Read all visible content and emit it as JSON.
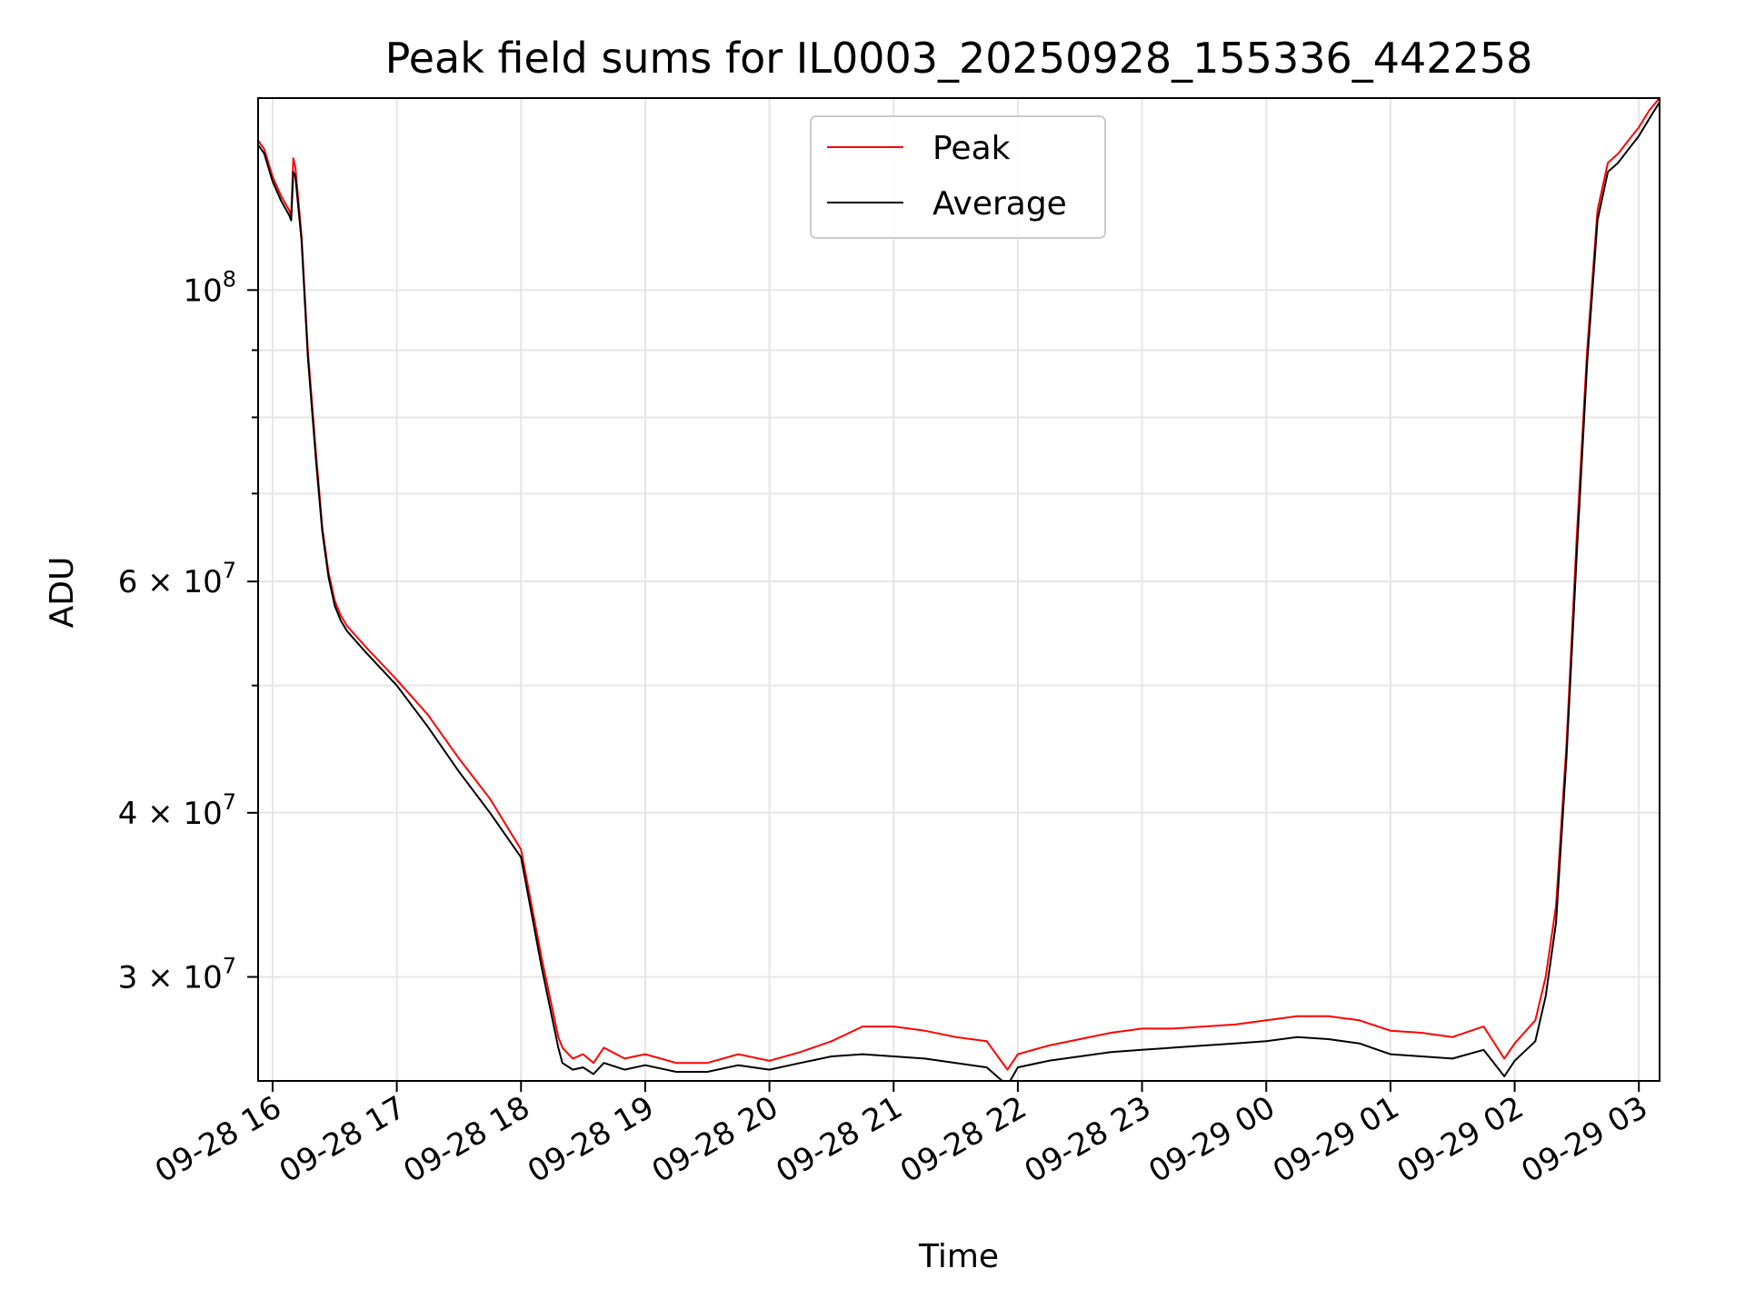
{
  "chart_data": {
    "type": "line",
    "title": "Peak field sums for IL0003_20250928_155336_442258",
    "xlabel": "Time",
    "ylabel": "ADU",
    "yscale": "log",
    "ylim": [
      25000000,
      140000000
    ],
    "xlim": [
      "2025-09-28T15:53",
      "2025-09-29T03:10"
    ],
    "grid": true,
    "legend_position": "top-center",
    "x_ticks": [
      {
        "t": "2025-09-28T16:00",
        "label": "09-28 16"
      },
      {
        "t": "2025-09-28T17:00",
        "label": "09-28 17"
      },
      {
        "t": "2025-09-28T18:00",
        "label": "09-28 18"
      },
      {
        "t": "2025-09-28T19:00",
        "label": "09-28 19"
      },
      {
        "t": "2025-09-28T20:00",
        "label": "09-28 20"
      },
      {
        "t": "2025-09-28T21:00",
        "label": "09-28 21"
      },
      {
        "t": "2025-09-28T22:00",
        "label": "09-28 22"
      },
      {
        "t": "2025-09-28T23:00",
        "label": "09-28 23"
      },
      {
        "t": "2025-09-29T00:00",
        "label": "09-29 00"
      },
      {
        "t": "2025-09-29T01:00",
        "label": "09-29 01"
      },
      {
        "t": "2025-09-29T02:00",
        "label": "09-29 02"
      },
      {
        "t": "2025-09-29T03:00",
        "label": "09-29 03"
      }
    ],
    "y_major_ticks": [
      {
        "value": 30000000,
        "mantissa": "3",
        "exponent": "7"
      },
      {
        "value": 40000000,
        "mantissa": "4",
        "exponent": "7"
      },
      {
        "value": 60000000,
        "mantissa": "6",
        "exponent": "7"
      },
      {
        "value": 100000000,
        "mantissa": "",
        "exponent": "8"
      }
    ],
    "y_minor_ticks": [
      50000000,
      70000000,
      80000000,
      90000000
    ],
    "series": [
      {
        "name": "Peak",
        "color": "#ff0000",
        "x": [
          "2025-09-28T15:53",
          "2025-09-28T15:56",
          "2025-09-28T16:00",
          "2025-09-28T16:04",
          "2025-09-28T16:08",
          "2025-09-28T16:09",
          "2025-09-28T16:10",
          "2025-09-28T16:11",
          "2025-09-28T16:14",
          "2025-09-28T16:17",
          "2025-09-28T16:21",
          "2025-09-28T16:24",
          "2025-09-28T16:27",
          "2025-09-28T16:30",
          "2025-09-28T16:33",
          "2025-09-28T16:36",
          "2025-09-28T16:45",
          "2025-09-28T17:00",
          "2025-09-28T17:15",
          "2025-09-28T17:30",
          "2025-09-28T17:45",
          "2025-09-28T18:00",
          "2025-09-28T18:10",
          "2025-09-28T18:18",
          "2025-09-28T18:20",
          "2025-09-28T18:25",
          "2025-09-28T18:30",
          "2025-09-28T18:35",
          "2025-09-28T18:40",
          "2025-09-28T18:50",
          "2025-09-28T19:00",
          "2025-09-28T19:15",
          "2025-09-28T19:30",
          "2025-09-28T19:45",
          "2025-09-28T20:00",
          "2025-09-28T20:15",
          "2025-09-28T20:30",
          "2025-09-28T20:45",
          "2025-09-28T21:00",
          "2025-09-28T21:15",
          "2025-09-28T21:30",
          "2025-09-28T21:45",
          "2025-09-28T21:55",
          "2025-09-28T22:00",
          "2025-09-28T22:15",
          "2025-09-28T22:30",
          "2025-09-28T22:45",
          "2025-09-28T23:00",
          "2025-09-28T23:15",
          "2025-09-28T23:30",
          "2025-09-28T23:45",
          "2025-09-29T00:00",
          "2025-09-29T00:15",
          "2025-09-29T00:30",
          "2025-09-29T00:45",
          "2025-09-29T01:00",
          "2025-09-29T01:15",
          "2025-09-29T01:30",
          "2025-09-29T01:45",
          "2025-09-29T01:55",
          "2025-09-29T02:00",
          "2025-09-29T02:10",
          "2025-09-29T02:15",
          "2025-09-29T02:20",
          "2025-09-29T02:25",
          "2025-09-29T02:30",
          "2025-09-29T02:35",
          "2025-09-29T02:40",
          "2025-09-29T02:45",
          "2025-09-29T02:50",
          "2025-09-29T02:55",
          "2025-09-29T03:00",
          "2025-09-29T03:05",
          "2025-09-29T03:10"
        ],
        "values": [
          130000000,
          128000000,
          122000000,
          118000000,
          115000000,
          114000000,
          126000000,
          124000000,
          110000000,
          90000000,
          75000000,
          66000000,
          61000000,
          58000000,
          56500000,
          55500000,
          53500000,
          50500000,
          47500000,
          44000000,
          41000000,
          37500000,
          31000000,
          27000000,
          26500000,
          26000000,
          26200000,
          25800000,
          26500000,
          26000000,
          26200000,
          25800000,
          25800000,
          26200000,
          25900000,
          26300000,
          26800000,
          27500000,
          27500000,
          27300000,
          27000000,
          26800000,
          25500000,
          26200000,
          26600000,
          26900000,
          27200000,
          27400000,
          27400000,
          27500000,
          27600000,
          27800000,
          28000000,
          28000000,
          27800000,
          27300000,
          27200000,
          27000000,
          27500000,
          26000000,
          26700000,
          27800000,
          30000000,
          34000000,
          45000000,
          65000000,
          90000000,
          115000000,
          125000000,
          127000000,
          130000000,
          133000000,
          137000000,
          140000000
        ]
      },
      {
        "name": "Average",
        "color": "#000000",
        "x": [
          "2025-09-28T15:53",
          "2025-09-28T15:56",
          "2025-09-28T16:00",
          "2025-09-28T16:04",
          "2025-09-28T16:08",
          "2025-09-28T16:09",
          "2025-09-28T16:10",
          "2025-09-28T16:11",
          "2025-09-28T16:14",
          "2025-09-28T16:17",
          "2025-09-28T16:21",
          "2025-09-28T16:24",
          "2025-09-28T16:27",
          "2025-09-28T16:30",
          "2025-09-28T16:33",
          "2025-09-28T16:36",
          "2025-09-28T16:45",
          "2025-09-28T17:00",
          "2025-09-28T17:15",
          "2025-09-28T17:30",
          "2025-09-28T17:45",
          "2025-09-28T18:00",
          "2025-09-28T18:10",
          "2025-09-28T18:18",
          "2025-09-28T18:20",
          "2025-09-28T18:25",
          "2025-09-28T18:30",
          "2025-09-28T18:35",
          "2025-09-28T18:40",
          "2025-09-28T18:50",
          "2025-09-28T19:00",
          "2025-09-28T19:15",
          "2025-09-28T19:30",
          "2025-09-28T19:45",
          "2025-09-28T20:00",
          "2025-09-28T20:15",
          "2025-09-28T20:30",
          "2025-09-28T20:45",
          "2025-09-28T21:00",
          "2025-09-28T21:15",
          "2025-09-28T21:30",
          "2025-09-28T21:45",
          "2025-09-28T21:55",
          "2025-09-28T22:00",
          "2025-09-28T22:15",
          "2025-09-28T22:30",
          "2025-09-28T22:45",
          "2025-09-28T23:00",
          "2025-09-28T23:15",
          "2025-09-28T23:30",
          "2025-09-28T23:45",
          "2025-09-29T00:00",
          "2025-09-29T00:15",
          "2025-09-29T00:30",
          "2025-09-29T00:45",
          "2025-09-29T01:00",
          "2025-09-29T01:15",
          "2025-09-29T01:30",
          "2025-09-29T01:45",
          "2025-09-29T01:55",
          "2025-09-29T02:00",
          "2025-09-29T02:10",
          "2025-09-29T02:15",
          "2025-09-29T02:20",
          "2025-09-29T02:25",
          "2025-09-29T02:30",
          "2025-09-29T02:35",
          "2025-09-29T02:40",
          "2025-09-29T02:45",
          "2025-09-29T02:50",
          "2025-09-29T02:55",
          "2025-09-29T03:00",
          "2025-09-29T03:05",
          "2025-09-29T03:10"
        ],
        "values": [
          129000000,
          127000000,
          121000000,
          117000000,
          114000000,
          113000000,
          123000000,
          122000000,
          109000000,
          89000000,
          74000000,
          65500000,
          60500000,
          57500000,
          56000000,
          55000000,
          53000000,
          50000000,
          46500000,
          43000000,
          40000000,
          37000000,
          30500000,
          26500000,
          25800000,
          25500000,
          25600000,
          25300000,
          25800000,
          25500000,
          25700000,
          25400000,
          25400000,
          25700000,
          25500000,
          25800000,
          26100000,
          26200000,
          26100000,
          26000000,
          25800000,
          25600000,
          24800000,
          25600000,
          25900000,
          26100000,
          26300000,
          26400000,
          26500000,
          26600000,
          26700000,
          26800000,
          27000000,
          26900000,
          26700000,
          26200000,
          26100000,
          26000000,
          26400000,
          25200000,
          25900000,
          26800000,
          29000000,
          33000000,
          44000000,
          63000000,
          88000000,
          113000000,
          123000000,
          125000000,
          128000000,
          131000000,
          135000000,
          139000000
        ]
      }
    ]
  }
}
